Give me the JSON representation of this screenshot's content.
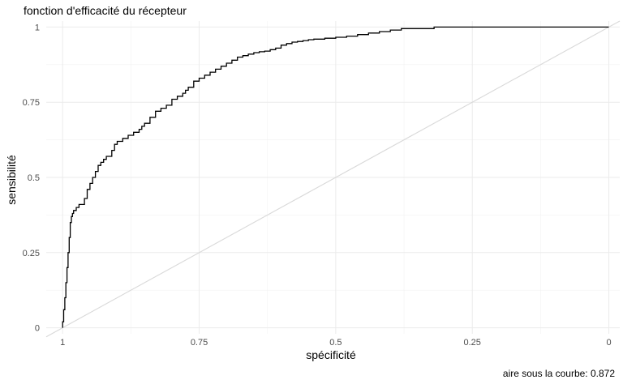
{
  "chart_data": {
    "type": "line",
    "title": "fonction d'efficacité du récepteur",
    "xlabel": "spécificité",
    "ylabel": "sensibilité",
    "caption": "aire sous la courbe: 0.872",
    "x_reversed": true,
    "xlim": [
      1.03,
      -0.02
    ],
    "ylim": [
      -0.02,
      1.02
    ],
    "x_ticks": [
      {
        "value": 1,
        "label": "1"
      },
      {
        "value": 0.75,
        "label": "0.75"
      },
      {
        "value": 0.5,
        "label": "0.5"
      },
      {
        "value": 0.25,
        "label": "0.25"
      },
      {
        "value": 0,
        "label": "0"
      }
    ],
    "y_ticks": [
      {
        "value": 0,
        "label": "0"
      },
      {
        "value": 0.25,
        "label": "0.25"
      },
      {
        "value": 0.5,
        "label": "0.5"
      },
      {
        "value": 0.75,
        "label": "0.75"
      },
      {
        "value": 1,
        "label": "1"
      }
    ],
    "grid": true,
    "series": [
      {
        "color": "#000000",
        "specificity": [
          1,
          1,
          0.998,
          0.996,
          0.994,
          0.992,
          0.99,
          0.988,
          0.986,
          0.984,
          0.982,
          0.98,
          0.975,
          0.97,
          0.96,
          0.955,
          0.95,
          0.945,
          0.94,
          0.935,
          0.93,
          0.925,
          0.92,
          0.91,
          0.905,
          0.9,
          0.89,
          0.88,
          0.87,
          0.86,
          0.855,
          0.85,
          0.84,
          0.83,
          0.82,
          0.81,
          0.8,
          0.79,
          0.78,
          0.775,
          0.77,
          0.76,
          0.75,
          0.74,
          0.73,
          0.72,
          0.71,
          0.7,
          0.69,
          0.68,
          0.67,
          0.66,
          0.65,
          0.64,
          0.63,
          0.62,
          0.61,
          0.6,
          0.59,
          0.58,
          0.57,
          0.56,
          0.55,
          0.54,
          0.52,
          0.5,
          0.48,
          0.46,
          0.44,
          0.42,
          0.4,
          0.38,
          0.32,
          0.25,
          0.15,
          0.05,
          0
        ],
        "sensitivity": [
          0,
          0.02,
          0.06,
          0.1,
          0.15,
          0.2,
          0.25,
          0.3,
          0.35,
          0.37,
          0.38,
          0.39,
          0.4,
          0.41,
          0.43,
          0.46,
          0.48,
          0.5,
          0.52,
          0.54,
          0.55,
          0.56,
          0.57,
          0.59,
          0.61,
          0.62,
          0.63,
          0.64,
          0.65,
          0.66,
          0.67,
          0.68,
          0.7,
          0.72,
          0.73,
          0.74,
          0.76,
          0.77,
          0.78,
          0.79,
          0.8,
          0.82,
          0.83,
          0.84,
          0.85,
          0.86,
          0.87,
          0.88,
          0.89,
          0.9,
          0.905,
          0.91,
          0.915,
          0.918,
          0.92,
          0.925,
          0.93,
          0.94,
          0.945,
          0.95,
          0.952,
          0.955,
          0.958,
          0.96,
          0.963,
          0.966,
          0.97,
          0.975,
          0.98,
          0.985,
          0.99,
          0.995,
          1,
          1,
          1,
          1,
          1
        ]
      },
      {
        "color": "#d9d9d9",
        "specificity": [
          1.03,
          -0.02
        ],
        "sensitivity": [
          -0.03,
          1.02
        ]
      }
    ]
  }
}
